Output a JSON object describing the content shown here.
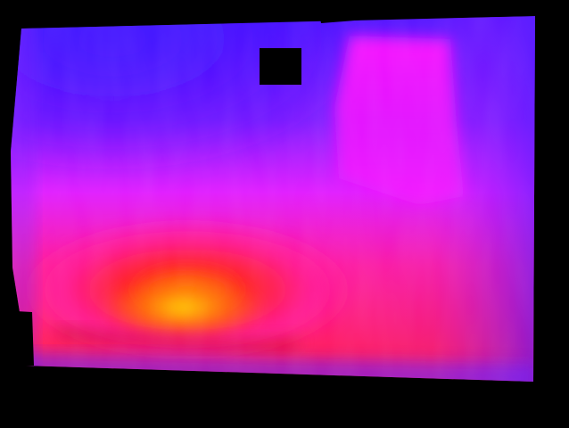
{
  "image": {
    "kind": "depth-map",
    "colormap": "plasma-like",
    "background_color": "#000000",
    "palette": {
      "far": "#3a10ff",
      "mid_far": "#7a18ff",
      "mid": "#e019ff",
      "near_mid": "#ff1a9a",
      "near": "#ff1a1a",
      "nearer": "#ff7a00",
      "nearest": "#ffe000",
      "hole": "#000000"
    }
  }
}
